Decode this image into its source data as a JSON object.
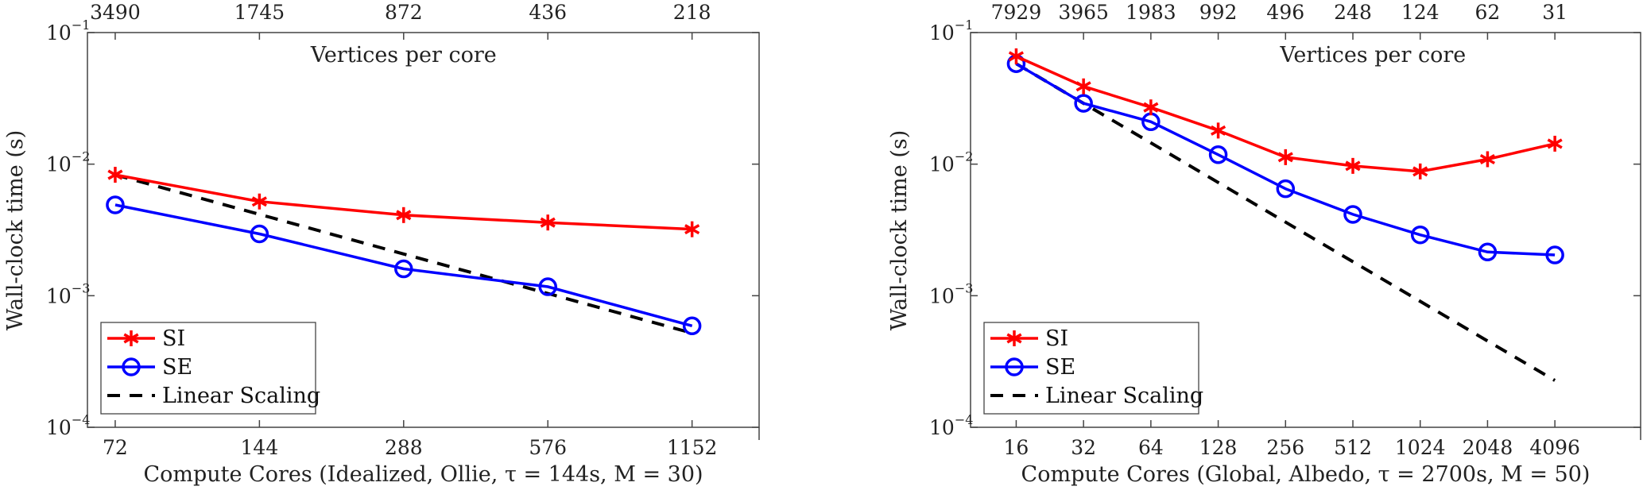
{
  "chart_data": [
    {
      "type": "line",
      "xscale": "log2",
      "yscale": "log10",
      "xlabel": "Compute Cores (Idealized, Ollie, τ = 144s, M = 30)",
      "ylabel": "Wall-clock time (s)",
      "top_axis_label": "Vertices per core",
      "x": [
        72,
        144,
        288,
        576,
        1152
      ],
      "xtick_labels": [
        "72",
        "144",
        "288",
        "576",
        "1152"
      ],
      "top_tick_labels": [
        "3490",
        "1745",
        "872",
        "436",
        "218"
      ],
      "xlim": [
        63,
        1590
      ],
      "ylim": [
        0.0001,
        0.1
      ],
      "ytick_labels": [
        {
          "base": "10",
          "exp": "−1"
        },
        {
          "base": "10",
          "exp": "−2"
        },
        {
          "base": "10",
          "exp": "−3"
        },
        {
          "base": "10",
          "exp": "−4"
        }
      ],
      "grid": false,
      "legend_position": "bottom-left",
      "series": [
        {
          "name": "SI",
          "color": "#ff0000",
          "marker": "asterisk",
          "dash": false,
          "values": [
            0.0083,
            0.0052,
            0.0041,
            0.0036,
            0.0032
          ]
        },
        {
          "name": "SE",
          "color": "#0000ff",
          "marker": "circle",
          "dash": false,
          "values": [
            0.0049,
            0.00295,
            0.0016,
            0.00117,
            0.00059
          ]
        },
        {
          "name": "Linear Scaling",
          "color": "#000000",
          "marker": "none",
          "dash": true,
          "values": [
            0.0083,
            0.00415,
            0.002075,
            0.00104,
            0.00052
          ]
        }
      ]
    },
    {
      "type": "line",
      "xscale": "log2",
      "yscale": "log10",
      "xlabel": "Compute Cores (Global, Albedo, τ = 2700s, M = 50)",
      "ylabel": "Wall-clock time (s)",
      "top_axis_label": "Vertices per core",
      "x": [
        16,
        32,
        64,
        128,
        256,
        512,
        1024,
        2048,
        4096
      ],
      "xtick_labels": [
        "16",
        "32",
        "64",
        "128",
        "256",
        "512",
        "1024",
        "2048",
        "4096"
      ],
      "top_tick_labels": [
        "7929",
        "3965",
        "1983",
        "992",
        "496",
        "248",
        "124",
        "62",
        "31"
      ],
      "xlim": [
        10,
        9900
      ],
      "ylim": [
        0.0001,
        0.1
      ],
      "ytick_labels": [
        {
          "base": "10",
          "exp": "−1"
        },
        {
          "base": "10",
          "exp": "−2"
        },
        {
          "base": "10",
          "exp": "−3"
        },
        {
          "base": "10",
          "exp": "−4"
        }
      ],
      "grid": false,
      "legend_position": "bottom-left",
      "series": [
        {
          "name": "SI",
          "color": "#ff0000",
          "marker": "asterisk",
          "dash": false,
          "values": [
            0.066,
            0.039,
            0.027,
            0.018,
            0.0113,
            0.0097,
            0.0088,
            0.0109,
            0.0143
          ]
        },
        {
          "name": "SE",
          "color": "#0000ff",
          "marker": "circle",
          "dash": false,
          "values": [
            0.058,
            0.029,
            0.021,
            0.0118,
            0.0065,
            0.00415,
            0.0029,
            0.00215,
            0.00204
          ]
        },
        {
          "name": "Linear Scaling",
          "color": "#000000",
          "marker": "none",
          "dash": true,
          "values": [
            0.058,
            0.029,
            0.0145,
            0.00725,
            0.003625,
            0.0018125,
            0.000906,
            0.000453,
            0.000227
          ]
        }
      ]
    }
  ]
}
